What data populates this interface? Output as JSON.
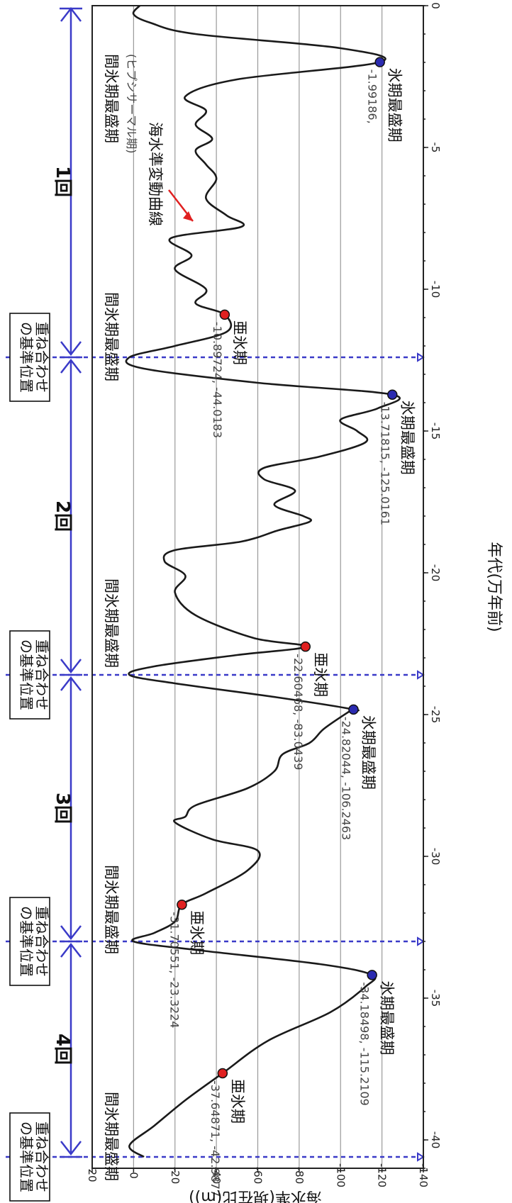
{
  "chart_data": {
    "type": "line",
    "xlabel": "年代(万年前)",
    "ylabel": "海水準(現在比(m))",
    "xlim": [
      -41,
      0
    ],
    "ylim": [
      -140,
      20
    ],
    "x_ticks": [
      -40,
      -35,
      -30,
      -25,
      -20,
      -15,
      -10,
      -5,
      0
    ],
    "y_ticks": [
      20,
      0,
      -20,
      -40,
      -60,
      -80,
      -100,
      -120,
      -140
    ],
    "grid": true,
    "series_label": "海水準変動曲線",
    "x": [
      -40.6,
      -40.2,
      -39.5,
      -38.6,
      -37.64871,
      -36.5,
      -35.5,
      -34.6,
      -34.18498,
      -33.8,
      -33.3,
      -33.0,
      -32.7,
      -32.3,
      -31.70551,
      -31.3,
      -30.5,
      -29.8,
      -29.4,
      -28.8,
      -28.6,
      -28.2,
      -27.6,
      -27.0,
      -26.4,
      -26.0,
      -25.5,
      -24.9,
      -24.82044,
      -24.4,
      -23.9,
      -23.6,
      -23.3,
      -22.9,
      -22.60468,
      -22.3,
      -21.5,
      -20.7,
      -20.1,
      -19.6,
      -19.2,
      -18.9,
      -18.5,
      -18.2,
      -18.0,
      -17.6,
      -17.1,
      -16.7,
      -16.3,
      -15.9,
      -15.4,
      -15.0,
      -14.6,
      -14.2,
      -13.71815,
      -13.3,
      -12.8,
      -12.4,
      -12.0,
      -11.5,
      -10.89724,
      -10.5,
      -10.0,
      -9.3,
      -8.8,
      -8.2,
      -7.8,
      -7.4,
      -6.8,
      -6.1,
      -5.6,
      -5.1,
      -4.7,
      -4.2,
      -3.7,
      -3.2,
      -2.6,
      -1.99186,
      -1.5,
      -1.0,
      -0.6,
      -0.3,
      0.0
    ],
    "y": [
      -5,
      2,
      -10,
      -25,
      -42.9877,
      -65,
      -95,
      -112,
      -115.2109,
      -90,
      -30,
      0,
      -10,
      -20,
      -23.3224,
      -35,
      -55,
      -60,
      -38,
      -20,
      -25,
      -30,
      -55,
      -68,
      -72,
      -85,
      -92,
      -104,
      -106.2463,
      -70,
      -20,
      2,
      -10,
      -50,
      -83.0439,
      -58,
      -30,
      -20,
      -25,
      -15,
      -20,
      -52,
      -70,
      -85,
      -82,
      -68,
      -78,
      -63,
      -63,
      -90,
      -112,
      -108,
      -100,
      -118,
      -125.0161,
      -60,
      -5,
      2,
      -20,
      -45,
      -44.0183,
      -30,
      -35,
      -20,
      -28,
      -18,
      -52,
      -45,
      -35,
      -40,
      -35,
      -30,
      -38,
      -30,
      -35,
      -25,
      -50,
      -119.0,
      -100,
      -30,
      -8,
      0,
      -3
    ],
    "points": [
      {
        "x": -37.64871,
        "y": -42.9877,
        "kind": "stadial",
        "label": "-37.64871, -42.9877"
      },
      {
        "x": -34.18498,
        "y": -115.2109,
        "kind": "glacial",
        "label": "-34.18498, -115.2109"
      },
      {
        "x": -31.70551,
        "y": -23.3224,
        "kind": "stadial",
        "label": "-31.70551, -23.3224"
      },
      {
        "x": -24.82044,
        "y": -106.2463,
        "kind": "glacial",
        "label": "-24.82044, -106.2463"
      },
      {
        "x": -22.60468,
        "y": -83.0439,
        "kind": "stadial",
        "label": "-22.60468, -83.0439"
      },
      {
        "x": -13.71815,
        "y": -125.0161,
        "kind": "glacial",
        "label": "-13.71815, -125.0161"
      },
      {
        "x": -10.89724,
        "y": -44.0183,
        "kind": "stadial",
        "label": "-10.89724, -44.0183"
      },
      {
        "x": -1.99186,
        "y": -119.0,
        "kind": "glacial",
        "label": "-1.99186,"
      }
    ],
    "ref_lines_x": [
      -40.6,
      -33.0,
      -23.6,
      -12.4
    ],
    "interglacial_labels": [
      {
        "x": -38.3,
        "text": "間氷期最盛期"
      },
      {
        "x": -30.3,
        "text": "間氷期最盛期"
      },
      {
        "x": -20.2,
        "text": "間氷期最盛期"
      },
      {
        "x": -10.1,
        "text": "間氷期最盛期"
      },
      {
        "x": -1.7,
        "text": "間氷期最盛期"
      }
    ],
    "hypsithermal_label": "(ヒプシサーマル期)",
    "glacial_label": "氷期最盛期",
    "stadial_label": "亜氷期",
    "ref_label_line1": "重ね合わせ",
    "ref_label_line2": "の基準位置",
    "cycles": [
      {
        "from": -40.6,
        "to": -33.0,
        "label": "4回"
      },
      {
        "from": -33.0,
        "to": -23.6,
        "label": "3回"
      },
      {
        "from": -23.6,
        "to": -12.4,
        "label": "2回"
      },
      {
        "from": -12.4,
        "to": 0.0,
        "label": "1回"
      }
    ],
    "colors": {
      "curve": "#1a1a1a",
      "ref": "#3a3ac8",
      "stadial": "#e02020",
      "glacial": "#2b2bb0",
      "arrow": "#e02020"
    }
  }
}
